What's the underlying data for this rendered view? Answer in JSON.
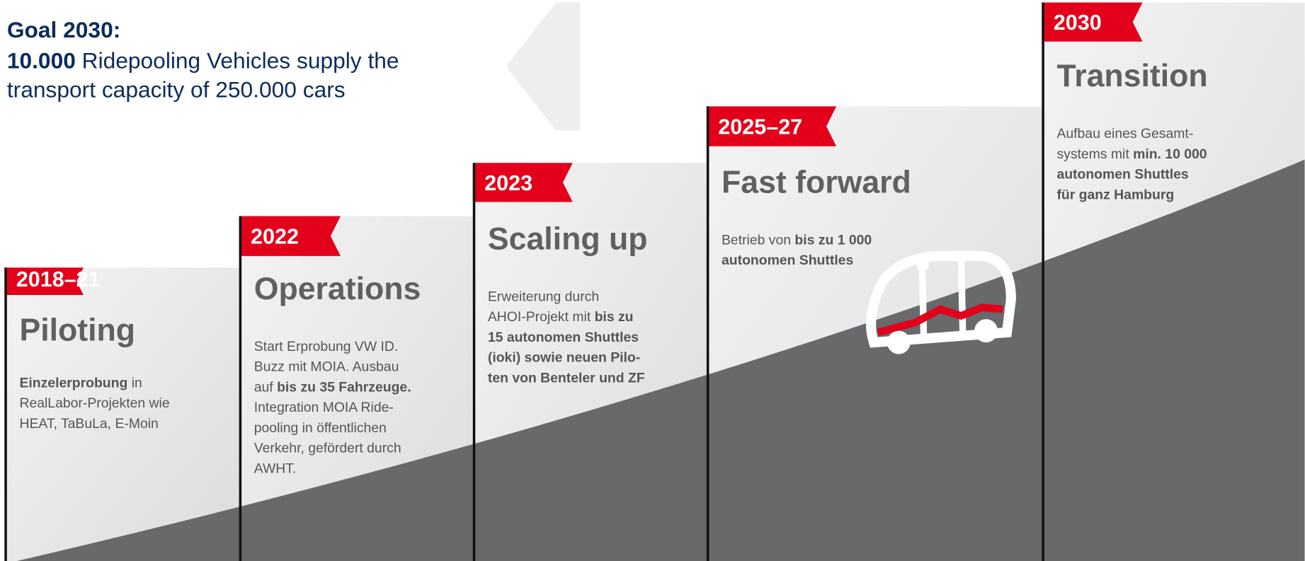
{
  "header": {
    "title": "Goal 2030:",
    "lines": [
      [
        {
          "text": "10.000",
          "bold": true
        },
        {
          "text": " Ridepooling Vehicles supply the",
          "bold": false
        }
      ],
      [
        {
          "text": "transport capacity of 250.000 cars",
          "bold": false
        }
      ]
    ]
  },
  "steps": [
    {
      "year": "2018–21",
      "title": "Piloting",
      "lines": [
        [
          {
            "text": "Einzelerprobung",
            "bold": true
          },
          {
            "text": " in",
            "bold": false
          }
        ],
        [
          {
            "text": "RealLabor-Projekten wie",
            "bold": false
          }
        ],
        [
          {
            "text": "HEAT, TaBuLa, E-Moin",
            "bold": false
          }
        ]
      ]
    },
    {
      "year": "2022",
      "title": "Operations",
      "lines": [
        [
          {
            "text": "Start Erprobung VW ID.",
            "bold": false
          }
        ],
        [
          {
            "text": "Buzz mit MOIA. Ausbau",
            "bold": false
          }
        ],
        [
          {
            "text": "auf ",
            "bold": false
          },
          {
            "text": "bis zu 35 Fahrzeuge.",
            "bold": true
          }
        ],
        [
          {
            "text": "Integration MOIA Ride-",
            "bold": false
          }
        ],
        [
          {
            "text": "pooling in öffentlichen",
            "bold": false
          }
        ],
        [
          {
            "text": "Verkehr, gefördert durch",
            "bold": false
          }
        ],
        [
          {
            "text": "AWHT.",
            "bold": false
          }
        ]
      ]
    },
    {
      "year": "2023",
      "title": "Scaling up",
      "lines": [
        [
          {
            "text": "Erweiterung durch",
            "bold": false
          }
        ],
        [
          {
            "text": "AHOI-Projekt mit ",
            "bold": false
          },
          {
            "text": "bis zu",
            "bold": true
          }
        ],
        [
          {
            "text": "15 autonomen Shuttles",
            "bold": true
          }
        ],
        [
          {
            "text": "(ioki) sowie neuen Pilo-",
            "bold": true
          }
        ],
        [
          {
            "text": "ten von Benteler und ZF",
            "bold": true
          }
        ]
      ]
    },
    {
      "year": "2025–27",
      "title": "Fast forward",
      "lines": [
        [
          {
            "text": "Betrieb von ",
            "bold": false
          },
          {
            "text": "bis zu 1 000",
            "bold": true
          }
        ],
        [
          {
            "text": "autonomen Shuttles",
            "bold": true
          }
        ]
      ]
    },
    {
      "year": "2030",
      "title": "Transition",
      "lines": [
        [
          {
            "text": "Aufbau eines Gesamt-",
            "bold": false
          }
        ],
        [
          {
            "text": "systems mit ",
            "bold": false
          },
          {
            "text": "min. 10 000",
            "bold": true
          }
        ],
        [
          {
            "text": "autonomen Shuttles",
            "bold": true
          }
        ],
        [
          {
            "text": "für ganz Hamburg",
            "bold": true
          }
        ]
      ]
    }
  ]
}
